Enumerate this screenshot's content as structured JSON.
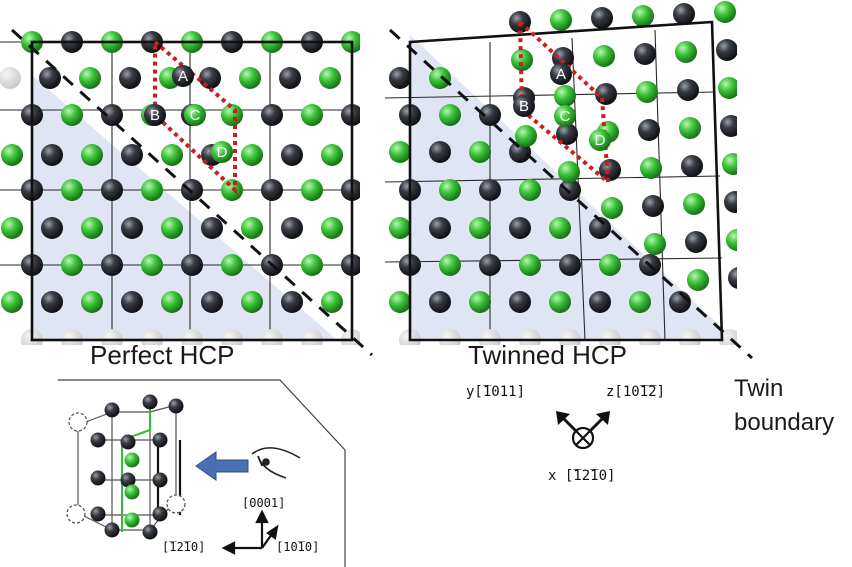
{
  "colors": {
    "black_atom": "#2b2d33",
    "green_atom": "#3fbf3f",
    "shade": "#dfe5f2",
    "dotted_cell": "#c8201e",
    "arrow": "#4a6fb3"
  },
  "panels": {
    "perfect": {
      "caption": "Perfect  HCP"
    },
    "twinned": {
      "caption": "Twinned HCP"
    }
  },
  "atom_labels": [
    "A",
    "B",
    "C",
    "D"
  ],
  "twin_label": {
    "line1": "Twin",
    "line2": "boundary"
  },
  "axes_main": {
    "y": "y[̅1011]",
    "z": "z[10̅1̅2]",
    "x": "x [̅12̅10]"
  },
  "axes_small": {
    "up": "[0001]",
    "left": "[̅12̅10]",
    "right": "[10̅10]"
  },
  "icons": [
    "eye-icon",
    "view-direction-arrow-icon",
    "out-of-page-axis-icon"
  ]
}
